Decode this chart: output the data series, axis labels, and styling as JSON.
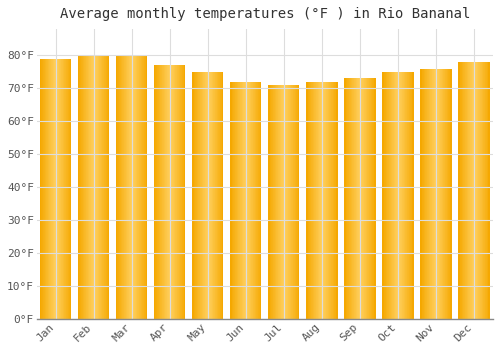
{
  "title": "Average monthly temperatures (°F ) in Rio Bananal",
  "months": [
    "Jan",
    "Feb",
    "Mar",
    "Apr",
    "May",
    "Jun",
    "Jul",
    "Aug",
    "Sep",
    "Oct",
    "Nov",
    "Dec"
  ],
  "values": [
    79,
    80,
    80,
    77,
    75,
    72,
    71,
    72,
    73,
    75,
    76,
    78
  ],
  "bar_color_light": "#FFD060",
  "bar_color_dark": "#F5A800",
  "background_color": "#FFFFFF",
  "grid_color": "#DDDDDD",
  "ylim": [
    0,
    88
  ],
  "yticks": [
    0,
    10,
    20,
    30,
    40,
    50,
    60,
    70,
    80
  ],
  "ytick_labels": [
    "0°F",
    "10°F",
    "20°F",
    "30°F",
    "40°F",
    "50°F",
    "60°F",
    "70°F",
    "80°F"
  ],
  "title_fontsize": 10,
  "tick_fontsize": 8,
  "font_family": "monospace",
  "bar_width": 0.82
}
